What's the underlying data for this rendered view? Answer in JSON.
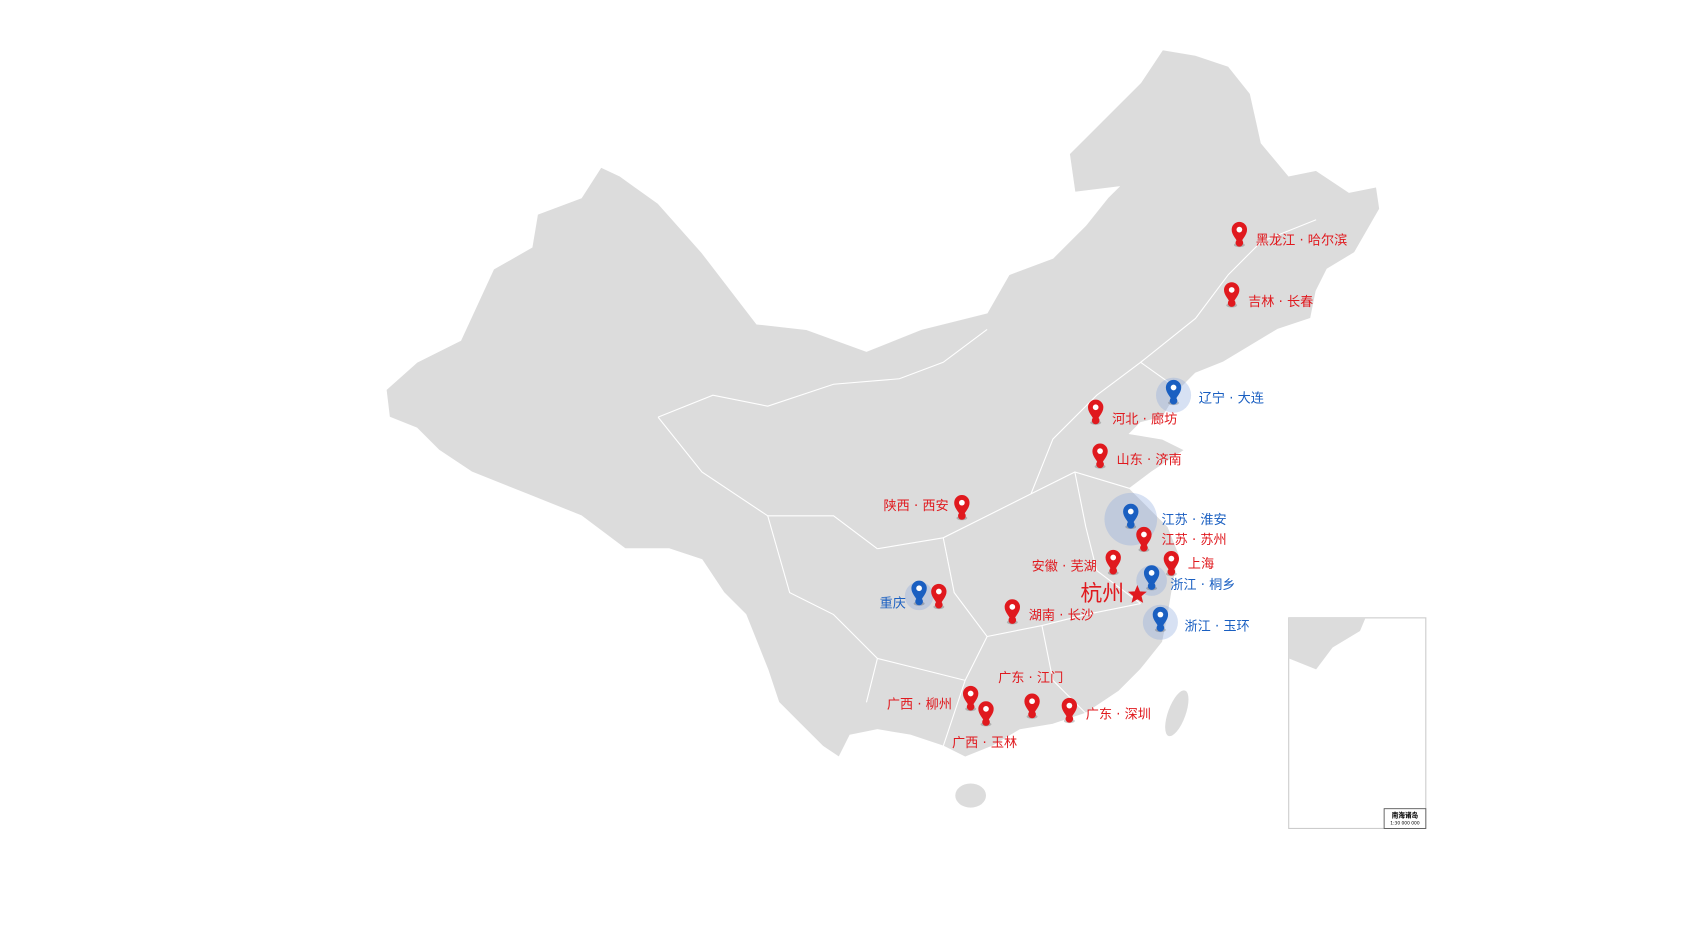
{
  "markers": [
    "黑龙江 · 哈尔滨",
    "吉林 · 长春",
    "辽宁 · 大连",
    "河北 · 廊坊",
    "山东 · 济南",
    "陕西 · 西安",
    "江苏 · 淮安",
    "江苏 · 苏州",
    "安徽 · 芜湖",
    "上海",
    "浙江 · 桐乡",
    "杭州",
    "重庆",
    "湖南 · 长沙",
    "浙江 · 玉环",
    "广东 · 江门",
    "广西 · 柳州",
    "广西 · 玉林",
    "广东 · 深圳"
  ],
  "inset": {
    "title": "南海诸岛",
    "scale": "1:30 000 000"
  }
}
